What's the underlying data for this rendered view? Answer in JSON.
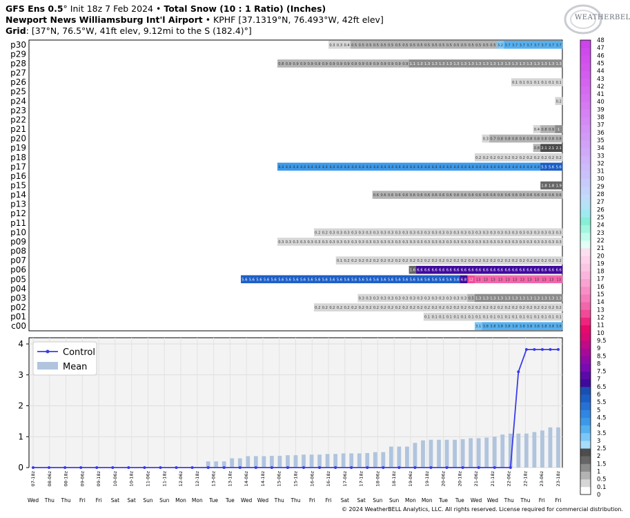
{
  "header": {
    "line1_bold": "GFS Ens 0.5",
    "line1_deg": "°",
    "line1_init": " Init 18z 7 Feb 2024",
    "line1_sep": " • ",
    "line1_title": "Total Snow (10 : 1 Ratio) (Inches)",
    "line2_bold": "Newport News Williamsburg Int'l Airport",
    "line2_rest": " • KPHF [37.1319°N, 76.493°W, 42ft elev]",
    "line3_bold": "Grid",
    "line3_rest": ": [37°N, 76.5°W, 41ft elev, 9.12mi to the S (182.4)°]"
  },
  "logo": {
    "text": "WEATHERBELL",
    "icon": "weatherbell-swirl-logo"
  },
  "copyright": "© 2024 WeatherBELL Analytics, LLC. All rights reserved. License required for commercial distribution.",
  "chart_data": [
    {
      "type": "heatmap",
      "title": "Total Snow (10 : 1 Ratio) (Inches)",
      "members": [
        "p30",
        "p29",
        "p28",
        "p27",
        "p26",
        "p25",
        "p24",
        "p23",
        "p22",
        "p21",
        "p20",
        "p19",
        "p18",
        "p17",
        "p16",
        "p15",
        "p14",
        "p13",
        "p12",
        "p11",
        "p10",
        "p09",
        "p08",
        "p07",
        "p06",
        "p05",
        "p04",
        "p03",
        "p02",
        "p01",
        "c00"
      ],
      "n_times": 65,
      "rows": {
        "p30": {
          "start": 41,
          "values": [
            0.3,
            0.3,
            0.4,
            0.5,
            0.5,
            0.5,
            0.5,
            0.5,
            0.5,
            0.5,
            0.5,
            0.5,
            0.5,
            0.5,
            0.5,
            0.5,
            0.5,
            0.5,
            0.5,
            0.5,
            0.5,
            0.5,
            0.5,
            3.2,
            3.7,
            3.7,
            3.7,
            3.7,
            3.7,
            3.7,
            3.7,
            3.7
          ]
        },
        "p28": {
          "start": 34,
          "values": [
            0.8,
            0.9,
            0.9,
            0.9,
            0.9,
            0.9,
            0.9,
            0.9,
            0.9,
            0.9,
            0.9,
            0.9,
            0.9,
            0.9,
            0.9,
            0.9,
            0.9,
            0.9,
            1.1,
            1.3,
            1.3,
            1.3,
            1.3,
            1.3,
            1.3,
            1.3,
            1.3,
            1.3,
            1.3,
            1.3,
            1.3,
            1.3,
            1.3,
            1.3,
            1.3,
            1.3,
            1.3,
            1.3,
            1.3
          ]
        },
        "p26": {
          "start": 66,
          "values": [
            0.1,
            0.1,
            0.1,
            0.1,
            0.1,
            0.1,
            0.1
          ]
        },
        "p24": {
          "start": 72,
          "values": [
            0.2
          ]
        },
        "p21": {
          "start": 69,
          "values": [
            0.4,
            0.8,
            0.9,
            1
          ]
        },
        "p20": {
          "start": 62,
          "values": [
            0.3,
            0.7,
            0.8,
            0.8,
            0.8,
            0.8,
            0.8,
            0.8,
            0.8,
            0.8,
            0.8
          ]
        },
        "p19": {
          "start": 69,
          "values": [
            0.8,
            2.1,
            2.1,
            2.1
          ]
        },
        "p18": {
          "start": 61,
          "values": [
            0.2,
            0.2,
            0.2,
            0.2,
            0.2,
            0.2,
            0.2,
            0.2,
            0.2,
            0.2,
            0.2,
            0.2
          ]
        },
        "p17": {
          "start": 34,
          "values": [
            4.4,
            4.4,
            4.4,
            4.4,
            4.4,
            4.4,
            4.4,
            4.4,
            4.4,
            4.4,
            4.4,
            4.4,
            4.4,
            4.4,
            4.4,
            4.4,
            4.4,
            4.4,
            4.4,
            4.4,
            4.4,
            4.4,
            4.4,
            4.4,
            4.4,
            4.4,
            4.4,
            4.4,
            4.4,
            4.4,
            4.4,
            4.4,
            4.4,
            4.4,
            4.4,
            4.4,
            5.5,
            5.6,
            5.6
          ]
        },
        "p15": {
          "start": 70,
          "values": [
            1.8,
            1.8,
            1.9
          ]
        },
        "p14": {
          "start": 47,
          "values": [
            0.6,
            0.6,
            0.6,
            0.6,
            0.6,
            0.6,
            0.6,
            0.6,
            0.6,
            0.6,
            0.6,
            0.6,
            0.6,
            0.6,
            0.6,
            0.6,
            0.6,
            0.6,
            0.6,
            0.6,
            0.6,
            0.6,
            0.6,
            0.6,
            0.6,
            0.6
          ]
        },
        "p10": {
          "start": 39,
          "values": [
            0.2,
            0.2,
            0.3,
            0.3,
            0.3,
            0.3,
            0.3,
            0.3,
            0.3,
            0.3,
            0.3,
            0.3,
            0.3,
            0.3,
            0.3,
            0.3,
            0.3,
            0.3,
            0.3,
            0.3,
            0.3,
            0.3,
            0.3,
            0.3,
            0.3,
            0.3,
            0.3,
            0.3,
            0.3,
            0.3,
            0.3,
            0.3,
            0.3,
            0.3
          ]
        },
        "p09": {
          "start": 34,
          "values": [
            0.3,
            0.3,
            0.3,
            0.3,
            0.3,
            0.3,
            0.3,
            0.3,
            0.3,
            0.3,
            0.3,
            0.3,
            0.3,
            0.3,
            0.3,
            0.3,
            0.3,
            0.3,
            0.3,
            0.3,
            0.3,
            0.3,
            0.3,
            0.3,
            0.3,
            0.3,
            0.3,
            0.3,
            0.3,
            0.3,
            0.3,
            0.3,
            0.3,
            0.3,
            0.3,
            0.3,
            0.3,
            0.3,
            0.3
          ]
        },
        "p07": {
          "start": 42,
          "values": [
            0.1,
            0.2,
            0.2,
            0.2,
            0.2,
            0.2,
            0.2,
            0.2,
            0.2,
            0.2,
            0.2,
            0.2,
            0.2,
            0.2,
            0.2,
            0.2,
            0.2,
            0.2,
            0.2,
            0.2,
            0.2,
            0.2,
            0.2,
            0.2,
            0.2,
            0.2,
            0.2,
            0.2,
            0.2,
            0.2,
            0.2
          ]
        },
        "p06": {
          "start": 52,
          "values": [
            1.6,
            6.6,
            6.6,
            6.6,
            6.6,
            6.6,
            6.6,
            6.6,
            6.6,
            6.6,
            6.6,
            6.6,
            6.6,
            6.6,
            6.6,
            6.6,
            6.6,
            6.6,
            6.6,
            6.6,
            6.6
          ]
        },
        "p05": {
          "start": 29,
          "values": [
            5.6,
            5.6,
            5.6,
            5.6,
            5.6,
            5.6,
            5.6,
            5.6,
            5.6,
            5.6,
            5.6,
            5.6,
            5.6,
            5.6,
            5.6,
            5.6,
            5.6,
            5.6,
            5.6,
            5.6,
            5.6,
            5.6,
            5.6,
            5.6,
            5.6,
            5.6,
            5.6,
            5.6,
            5.6,
            5.6,
            6.8,
            12,
            13,
            13,
            13,
            13,
            13,
            13,
            13,
            13,
            13,
            13,
            13,
            13
          ]
        },
        "p03": {
          "start": 45,
          "values": [
            0.3,
            0.3,
            0.3,
            0.3,
            0.3,
            0.3,
            0.3,
            0.3,
            0.3,
            0.3,
            0.3,
            0.3,
            0.3,
            0.3,
            0.3,
            0.5,
            1.3,
            1.3,
            1.3,
            1.3,
            1.3,
            1.3,
            1.3,
            1.3,
            1.3,
            1.3,
            1.3,
            1.3
          ]
        },
        "p02": {
          "start": 39,
          "values": [
            0.2,
            0.2,
            0.2,
            0.2,
            0.2,
            0.2,
            0.2,
            0.2,
            0.2,
            0.2,
            0.2,
            0.2,
            0.2,
            0.2,
            0.2,
            0.2,
            0.2,
            0.2,
            0.2,
            0.2,
            0.2,
            0.2,
            0.2,
            0.2,
            0.2,
            0.2,
            0.2,
            0.2,
            0.2,
            0.2,
            0.2,
            0.2,
            0.2,
            0.2
          ]
        },
        "p01": {
          "start": 54,
          "values": [
            0.1,
            0.1,
            0.1,
            0.1,
            0.1,
            0.1,
            0.1,
            0.1,
            0.1,
            0.1,
            0.1,
            0.1,
            0.1,
            0.1,
            0.1,
            0.1,
            0.1,
            0.1,
            0.1
          ]
        },
        "c00": {
          "start": 61,
          "values": [
            3.1,
            3.8,
            3.8,
            3.8,
            3.8,
            3.8,
            3.8,
            3.8,
            3.8,
            3.8,
            3.8,
            3.8
          ]
        }
      }
    },
    {
      "type": "bar",
      "x_labels": [
        "07-18z",
        "08-06z",
        "08-18z",
        "09-06z",
        "09-18z",
        "10-06z",
        "10-18z",
        "11-06z",
        "11-18z",
        "12-06z",
        "12-18z",
        "13-06z",
        "13-18z",
        "14-06z",
        "14-18z",
        "15-06z",
        "15-18z",
        "16-06z",
        "16-18z",
        "17-06z",
        "17-18z",
        "18-06z",
        "18-18z",
        "19-06z",
        "19-18z",
        "20-06z",
        "20-18z",
        "21-06z",
        "21-18z",
        "22-06z",
        "22-18z",
        "23-06z",
        "23-18z"
      ],
      "day_labels": [
        "Wed",
        "Thu",
        "Thu",
        "Fri",
        "Fri",
        "Sat",
        "Sat",
        "Sun",
        "Sun",
        "Mon",
        "Mon",
        "Tue",
        "Tue",
        "Wed",
        "Wed",
        "Thu",
        "Thu",
        "Fri",
        "Fri",
        "Sat",
        "Sat",
        "Sun",
        "Sun",
        "Mon",
        "Mon",
        "Tue",
        "Tue",
        "Wed",
        "Wed",
        "Thu",
        "Thu",
        "Fri",
        "Fri"
      ],
      "ylim": [
        0,
        4
      ],
      "yticks": [
        0,
        1,
        2,
        3,
        4
      ],
      "legend": {
        "placement": "top-left",
        "control": "Control",
        "mean": "Mean"
      },
      "series": [
        {
          "name": "Mean",
          "type": "bar",
          "color": "#b0c4de",
          "values": [
            0,
            0,
            0,
            0,
            0,
            0,
            0,
            0,
            0,
            0,
            0,
            0,
            0,
            0,
            0,
            0,
            0,
            0,
            0,
            0,
            0,
            0,
            0,
            0,
            0,
            0,
            0,
            0,
            0,
            0,
            0,
            0,
            0,
            0,
            0,
            0,
            0,
            0,
            0,
            0,
            0,
            0,
            0,
            0,
            0,
            0,
            0,
            0,
            0,
            0,
            0,
            0,
            0,
            0,
            0,
            0,
            0,
            0,
            0,
            0,
            0,
            0,
            0,
            0,
            0,
            0,
            0,
            0,
            0,
            0,
            0,
            0,
            0,
            0,
            0,
            0,
            0,
            0,
            0,
            0,
            0,
            0,
            0,
            0,
            0
          ]
        },
        {
          "name": "Control",
          "type": "line",
          "color": "#3a3aeb",
          "values": [
            0,
            0,
            0,
            0,
            0,
            0,
            0,
            0,
            0,
            0,
            0,
            0,
            0,
            0,
            0,
            0,
            0,
            0,
            0,
            0,
            0,
            0,
            0,
            0,
            0,
            0,
            0,
            0,
            0,
            0,
            0,
            0,
            0,
            0,
            0,
            0,
            0,
            0,
            0,
            0,
            0,
            0,
            0,
            0,
            0,
            0,
            0,
            0,
            0,
            0,
            0,
            0,
            0,
            0,
            0,
            0,
            0,
            0,
            0,
            0,
            0,
            3.1,
            3.8,
            3.8,
            3.8,
            3.8,
            3.8,
            3.8,
            3.8,
            3.8,
            3.8,
            3.8,
            3.8
          ]
        }
      ]
    },
    {
      "type": "colorbar",
      "ticks": [
        "0",
        "0.1",
        "0.5",
        "1",
        "1.5",
        "2",
        "2.5",
        "3",
        "3.5",
        "4",
        "4.5",
        "5",
        "5.5",
        "6",
        "6.5",
        "7",
        "7.5",
        "8",
        "8.5",
        "9",
        "9.5",
        "10",
        "11",
        "12",
        "13",
        "14",
        "15",
        "16",
        "17",
        "18",
        "19",
        "20",
        "21",
        "22",
        "23",
        "24",
        "25",
        "26",
        "27",
        "28",
        "29",
        "30",
        "31",
        "32",
        "33",
        "34",
        "35",
        "36",
        "37",
        "38",
        "39",
        "40",
        "41",
        "42",
        "43",
        "44",
        "45",
        "46",
        "47",
        "48"
      ]
    }
  ]
}
